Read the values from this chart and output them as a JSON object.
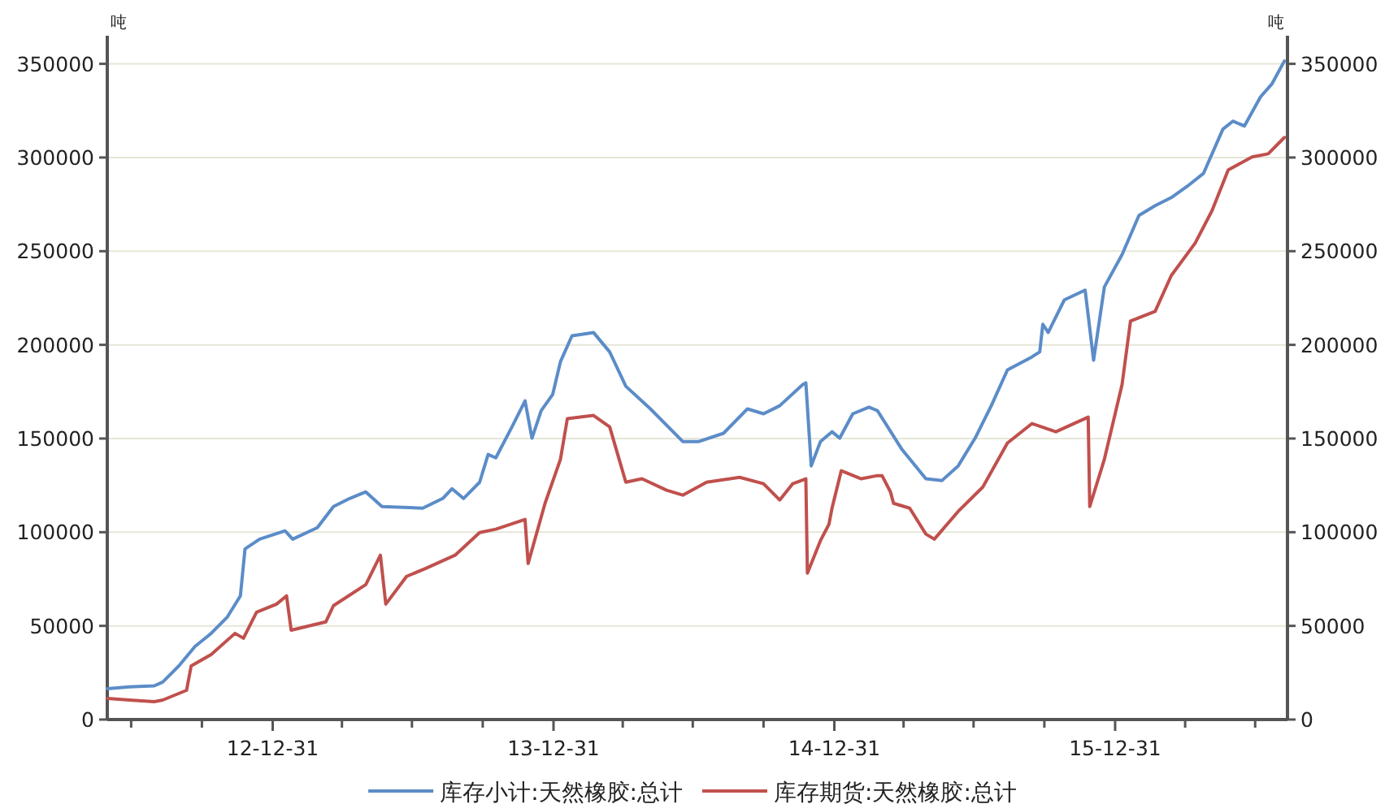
{
  "chart_data": {
    "type": "line",
    "ylabel": "吨",
    "y2label": "吨",
    "xlim": [
      "2012-05-30",
      "2016-08-11"
    ],
    "xticks": [
      {
        "value": "2012-06-30",
        "label": null
      },
      {
        "value": "2012-09-30",
        "label": null
      },
      {
        "value": "2012-12-31",
        "label": "12-12-31"
      },
      {
        "value": "2013-03-31",
        "label": null
      },
      {
        "value": "2013-06-30",
        "label": null
      },
      {
        "value": "2013-09-30",
        "label": null
      },
      {
        "value": "2013-12-31",
        "label": "13-12-31"
      },
      {
        "value": "2014-03-31",
        "label": null
      },
      {
        "value": "2014-06-30",
        "label": null
      },
      {
        "value": "2014-09-30",
        "label": null
      },
      {
        "value": "2014-12-31",
        "label": "14-12-31"
      },
      {
        "value": "2015-03-31",
        "label": null
      },
      {
        "value": "2015-06-30",
        "label": null
      },
      {
        "value": "2015-09-30",
        "label": null
      },
      {
        "value": "2015-12-31",
        "label": "15-12-31"
      },
      {
        "value": "2016-03-31",
        "label": null
      },
      {
        "value": "2016-06-30",
        "label": null
      }
    ],
    "ylim": [
      0,
      365000
    ],
    "yticks": [
      0,
      50000,
      100000,
      150000,
      200000,
      250000,
      300000,
      350000
    ],
    "y2lim": [
      0,
      365000
    ],
    "y2ticks": [
      0,
      50000,
      100000,
      150000,
      200000,
      250000,
      300000,
      350000
    ],
    "grid": "y",
    "legend": "bottom",
    "marker": "none",
    "line_style": "solid",
    "series": [
      {
        "name": "库存小计:天然橡胶:总计",
        "color": "#5b8cc8",
        "x": [
          "2012-05-30",
          "2012-06-28",
          "2012-07-30",
          "2012-08-10",
          "2012-08-31",
          "2012-09-21",
          "2012-10-12",
          "2012-11-02",
          "2012-11-19",
          "2012-11-25",
          "2012-12-14",
          "2013-01-16",
          "2013-01-26",
          "2013-02-27",
          "2013-03-20",
          "2013-04-10",
          "2013-05-01",
          "2013-05-22",
          "2013-07-14",
          "2013-08-09",
          "2013-08-21",
          "2013-09-05",
          "2013-09-26",
          "2013-10-07",
          "2013-10-17",
          "2013-11-07",
          "2013-11-24",
          "2013-12-03",
          "2013-12-15",
          "2013-12-30",
          "2014-01-09",
          "2014-01-24",
          "2014-02-21",
          "2014-03-14",
          "2014-04-04",
          "2014-05-06",
          "2014-06-17",
          "2014-07-08",
          "2014-08-09",
          "2014-09-09",
          "2014-09-30",
          "2014-10-21",
          "2014-11-20",
          "2014-11-24",
          "2014-12-01",
          "2014-12-13",
          "2014-12-28",
          "2015-01-07",
          "2015-01-24",
          "2015-02-14",
          "2015-02-25",
          "2015-03-29",
          "2015-04-29",
          "2015-05-20",
          "2015-06-10",
          "2015-07-02",
          "2015-07-23",
          "2015-08-13",
          "2015-09-14",
          "2015-09-24",
          "2015-09-28",
          "2015-10-05",
          "2015-10-26",
          "2015-11-22",
          "2015-12-03",
          "2015-12-17",
          "2016-01-09",
          "2016-01-31",
          "2016-02-21",
          "2016-03-13",
          "2016-04-03",
          "2016-04-24",
          "2016-05-19",
          "2016-06-01",
          "2016-06-16",
          "2016-07-07",
          "2016-07-22",
          "2016-08-07"
        ],
        "values": [
          16500,
          17400,
          18000,
          20000,
          28600,
          39000,
          46000,
          54700,
          66000,
          91100,
          96300,
          100700,
          96300,
          102400,
          113700,
          118000,
          121500,
          113700,
          112800,
          118000,
          123200,
          118000,
          126700,
          141500,
          139700,
          156200,
          170100,
          150200,
          164900,
          173600,
          191000,
          204800,
          206600,
          196200,
          177900,
          165800,
          148400,
          148400,
          152800,
          165800,
          163200,
          167500,
          178800,
          179700,
          135400,
          148400,
          153600,
          150200,
          163200,
          166700,
          164900,
          144100,
          128500,
          127600,
          135400,
          150200,
          167500,
          186600,
          193600,
          196200,
          211000,
          206600,
          224000,
          229200,
          191800,
          230900,
          248200,
          269100,
          274300,
          278600,
          284700,
          291600,
          315100,
          319400,
          316800,
          332400,
          339400,
          351500
        ]
      },
      {
        "name": "库存期货:天然橡胶:总计",
        "color": "#c0504d",
        "x": [
          "2012-05-30",
          "2012-06-28",
          "2012-07-30",
          "2012-08-10",
          "2012-09-10",
          "2012-09-16",
          "2012-10-12",
          "2012-11-12",
          "2012-11-23",
          "2012-12-10",
          "2013-01-05",
          "2013-01-18",
          "2013-01-24",
          "2013-03-10",
          "2013-03-20",
          "2013-05-01",
          "2013-05-20",
          "2013-05-27",
          "2013-06-23",
          "2013-07-18",
          "2013-08-25",
          "2013-09-26",
          "2013-10-17",
          "2013-11-24",
          "2013-11-28",
          "2013-12-20",
          "2014-01-09",
          "2014-01-18",
          "2014-02-21",
          "2014-03-14",
          "2014-04-04",
          "2014-04-25",
          "2014-05-27",
          "2014-06-17",
          "2014-07-18",
          "2014-08-30",
          "2014-09-30",
          "2014-10-21",
          "2014-11-07",
          "2014-11-24",
          "2014-11-26",
          "2014-12-13",
          "2014-12-24",
          "2014-12-28",
          "2015-01-09",
          "2015-02-04",
          "2015-02-25",
          "2015-03-03",
          "2015-03-14",
          "2015-03-18",
          "2015-04-08",
          "2015-04-29",
          "2015-05-10",
          "2015-06-10",
          "2015-07-12",
          "2015-08-13",
          "2015-09-14",
          "2015-10-15",
          "2015-11-26",
          "2015-11-28",
          "2015-12-17",
          "2016-01-09",
          "2016-01-20",
          "2016-02-21",
          "2016-03-13",
          "2016-04-13",
          "2016-05-05",
          "2016-05-26",
          "2016-06-26",
          "2016-07-17",
          "2016-08-07"
        ],
        "values": [
          11300,
          10400,
          9500,
          10400,
          15600,
          28600,
          34700,
          46000,
          43400,
          57300,
          61600,
          66000,
          47700,
          52100,
          60800,
          72000,
          87700,
          61600,
          76400,
          80700,
          87700,
          99800,
          101600,
          106800,
          83300,
          115400,
          138900,
          160600,
          162300,
          156200,
          126700,
          128500,
          122400,
          119800,
          126700,
          129300,
          125900,
          117200,
          125900,
          128500,
          78100,
          95500,
          104200,
          112800,
          132800,
          128500,
          130200,
          130200,
          121500,
          115400,
          112800,
          99000,
          96300,
          111100,
          124100,
          147600,
          158000,
          153600,
          161400,
          113700,
          138900,
          178800,
          212700,
          217900,
          237000,
          254300,
          271700,
          293400,
          300300,
          302000,
          310700
        ]
      }
    ]
  }
}
